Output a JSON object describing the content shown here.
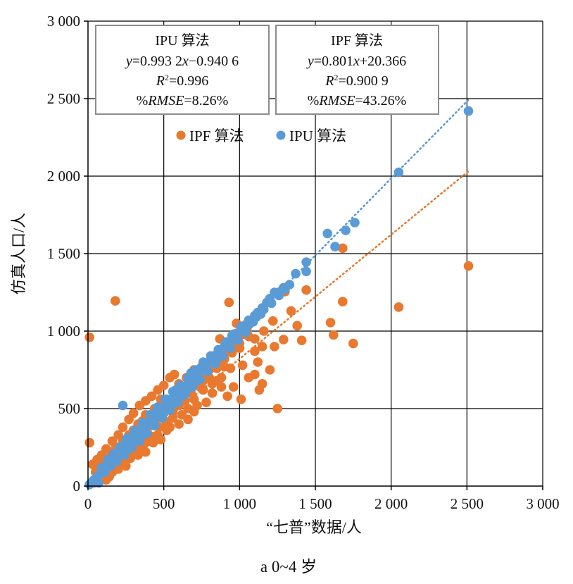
{
  "chart_data": {
    "type": "scatter",
    "title": "",
    "caption": "a 0~4 岁",
    "xlabel": "“七普”数据/人",
    "ylabel": "仿真人口/人",
    "xlim": [
      0,
      3000
    ],
    "ylim": [
      0,
      3000
    ],
    "x_ticks": [
      0,
      500,
      1000,
      1500,
      2000,
      2500,
      3000
    ],
    "y_ticks": [
      0,
      500,
      1000,
      1500,
      2000,
      2500,
      3000
    ],
    "x_tick_labels": [
      "0",
      "500",
      "1 000",
      "1 500",
      "2 000",
      "2 500",
      "3 000"
    ],
    "y_tick_labels": [
      "0",
      "500",
      "1 000",
      "1 500",
      "2 000",
      "2 500",
      "3 000"
    ],
    "grid": true,
    "legend_position": "top-center",
    "legend": [
      {
        "series": "IPF",
        "label": "IPF 算法"
      },
      {
        "series": "IPU",
        "label": "IPU 算法"
      }
    ],
    "series": [
      {
        "name": "IPF",
        "label": "IPF 算法",
        "color": "#e8792f",
        "points": [
          [
            10,
            960
          ],
          [
            10,
            280
          ],
          [
            180,
            1195
          ],
          [
            1300,
            1255
          ],
          [
            1680,
            1535
          ],
          [
            1440,
            1265
          ],
          [
            930,
            1185
          ],
          [
            1680,
            1190
          ],
          [
            2050,
            1155
          ],
          [
            2510,
            1420
          ],
          [
            1600,
            1055
          ],
          [
            1620,
            975
          ],
          [
            1750,
            920
          ],
          [
            1410,
            940
          ],
          [
            1290,
            945
          ],
          [
            1220,
            1065
          ],
          [
            1250,
            500
          ],
          [
            1340,
            1130
          ],
          [
            1380,
            1035
          ],
          [
            1060,
            965
          ],
          [
            1000,
            890
          ],
          [
            1120,
            800
          ],
          [
            1200,
            750
          ],
          [
            1060,
            700
          ],
          [
            1130,
            620
          ],
          [
            920,
            580
          ],
          [
            1010,
            560
          ],
          [
            1150,
            660
          ],
          [
            1100,
            720
          ],
          [
            960,
            640
          ],
          [
            1100,
            870
          ],
          [
            980,
            1050
          ],
          [
            870,
            950
          ],
          [
            880,
            700
          ],
          [
            820,
            600
          ],
          [
            740,
            640
          ],
          [
            680,
            600
          ],
          [
            600,
            520
          ],
          [
            560,
            480
          ],
          [
            520,
            410
          ],
          [
            470,
            380
          ],
          [
            420,
            320
          ],
          [
            380,
            280
          ],
          [
            340,
            240
          ],
          [
            300,
            220
          ],
          [
            260,
            190
          ],
          [
            220,
            150
          ],
          [
            180,
            130
          ],
          [
            160,
            90
          ],
          [
            140,
            60
          ],
          [
            120,
            40
          ],
          [
            100,
            80
          ],
          [
            80,
            60
          ],
          [
            60,
            40
          ],
          [
            40,
            20
          ],
          [
            30,
            140
          ],
          [
            60,
            170
          ],
          [
            90,
            200
          ],
          [
            120,
            240
          ],
          [
            160,
            290
          ],
          [
            200,
            330
          ],
          [
            230,
            380
          ],
          [
            270,
            430
          ],
          [
            300,
            470
          ],
          [
            340,
            520
          ],
          [
            380,
            550
          ],
          [
            420,
            580
          ],
          [
            460,
            620
          ],
          [
            500,
            650
          ],
          [
            540,
            700
          ],
          [
            570,
            720
          ],
          [
            480,
            560
          ],
          [
            420,
            460
          ],
          [
            360,
            420
          ],
          [
            300,
            360
          ],
          [
            250,
            300
          ],
          [
            200,
            250
          ],
          [
            150,
            190
          ],
          [
            100,
            140
          ],
          [
            50,
            90
          ],
          [
            600,
            660
          ],
          [
            650,
            700
          ],
          [
            700,
            750
          ],
          [
            640,
            550
          ],
          [
            700,
            560
          ],
          [
            760,
            620
          ],
          [
            800,
            700
          ],
          [
            850,
            760
          ],
          [
            900,
            820
          ],
          [
            950,
            860
          ],
          [
            1000,
            920
          ],
          [
            620,
            460
          ],
          [
            660,
            500
          ],
          [
            700,
            480
          ],
          [
            560,
            440
          ],
          [
            520,
            360
          ],
          [
            460,
            330
          ],
          [
            400,
            300
          ],
          [
            350,
            260
          ],
          [
            290,
            260
          ],
          [
            240,
            210
          ],
          [
            200,
            180
          ],
          [
            700,
            650
          ],
          [
            750,
            700
          ],
          [
            800,
            750
          ],
          [
            850,
            800
          ],
          [
            900,
            850
          ],
          [
            950,
            900
          ],
          [
            880,
            640
          ],
          [
            940,
            760
          ],
          [
            1020,
            780
          ],
          [
            780,
            540
          ],
          [
            720,
            520
          ],
          [
            660,
            430
          ],
          [
            600,
            400
          ],
          [
            540,
            380
          ],
          [
            480,
            300
          ],
          [
            430,
            280
          ],
          [
            380,
            220
          ],
          [
            330,
            200
          ],
          [
            280,
            180
          ],
          [
            250,
            130
          ],
          [
            200,
            110
          ],
          [
            620,
            590
          ],
          [
            580,
            610
          ],
          [
            500,
            540
          ],
          [
            440,
            500
          ],
          [
            380,
            460
          ],
          [
            330,
            400
          ],
          [
            270,
            330
          ],
          [
            230,
            290
          ],
          [
            180,
            240
          ],
          [
            140,
            180
          ],
          [
            110,
            150
          ],
          [
            80,
            120
          ],
          [
            900,
            770
          ],
          [
            850,
            680
          ],
          [
            820,
            660
          ],
          [
            760,
            680
          ],
          [
            680,
            640
          ],
          [
            640,
            620
          ],
          [
            560,
            500
          ],
          [
            520,
            520
          ],
          [
            460,
            440
          ],
          [
            410,
            390
          ],
          [
            360,
            350
          ],
          [
            310,
            310
          ],
          [
            1050,
            1000
          ],
          [
            1100,
            950
          ],
          [
            1160,
            1000
          ],
          [
            1230,
            900
          ],
          [
            1150,
            900
          ],
          [
            1080,
            1060
          ],
          [
            1030,
            980
          ]
        ]
      },
      {
        "name": "IPU",
        "label": "IPU 算法",
        "color": "#5b9bd5",
        "points": [
          [
            2510,
            2420
          ],
          [
            2050,
            2025
          ],
          [
            1760,
            1700
          ],
          [
            1700,
            1650
          ],
          [
            1630,
            1545
          ],
          [
            1580,
            1630
          ],
          [
            1440,
            1445
          ],
          [
            1440,
            1385
          ],
          [
            1370,
            1370
          ],
          [
            1300,
            1270
          ],
          [
            1270,
            1255
          ],
          [
            1230,
            1250
          ],
          [
            1200,
            1210
          ],
          [
            1180,
            1185
          ],
          [
            1150,
            1150
          ],
          [
            1120,
            1120
          ],
          [
            1100,
            1100
          ],
          [
            1060,
            1070
          ],
          [
            1040,
            1040
          ],
          [
            1010,
            1010
          ],
          [
            980,
            985
          ],
          [
            950,
            950
          ],
          [
            920,
            925
          ],
          [
            900,
            900
          ],
          [
            870,
            870
          ],
          [
            850,
            850
          ],
          [
            820,
            825
          ],
          [
            800,
            800
          ],
          [
            780,
            780
          ],
          [
            760,
            760
          ],
          [
            730,
            735
          ],
          [
            710,
            710
          ],
          [
            690,
            690
          ],
          [
            670,
            670
          ],
          [
            650,
            650
          ],
          [
            620,
            625
          ],
          [
            600,
            600
          ],
          [
            580,
            580
          ],
          [
            560,
            560
          ],
          [
            540,
            540
          ],
          [
            510,
            515
          ],
          [
            490,
            490
          ],
          [
            470,
            470
          ],
          [
            450,
            450
          ],
          [
            430,
            430
          ],
          [
            400,
            405
          ],
          [
            380,
            380
          ],
          [
            360,
            360
          ],
          [
            340,
            340
          ],
          [
            320,
            320
          ],
          [
            300,
            300
          ],
          [
            280,
            280
          ],
          [
            260,
            260
          ],
          [
            240,
            240
          ],
          [
            220,
            220
          ],
          [
            200,
            200
          ],
          [
            180,
            180
          ],
          [
            160,
            160
          ],
          [
            140,
            140
          ],
          [
            120,
            120
          ],
          [
            100,
            100
          ],
          [
            80,
            80
          ],
          [
            60,
            60
          ],
          [
            40,
            40
          ],
          [
            20,
            20
          ],
          [
            10,
            10
          ],
          [
            230,
            520
          ],
          [
            30,
            30
          ],
          [
            50,
            30
          ],
          [
            70,
            20
          ],
          [
            90,
            120
          ],
          [
            110,
            90
          ],
          [
            130,
            170
          ],
          [
            150,
            130
          ],
          [
            170,
            210
          ],
          [
            190,
            160
          ],
          [
            210,
            250
          ],
          [
            240,
            200
          ],
          [
            260,
            310
          ],
          [
            290,
            250
          ],
          [
            310,
            360
          ],
          [
            340,
            290
          ],
          [
            360,
            410
          ],
          [
            390,
            340
          ],
          [
            410,
            460
          ],
          [
            440,
            390
          ],
          [
            460,
            510
          ],
          [
            490,
            440
          ],
          [
            510,
            560
          ],
          [
            540,
            490
          ],
          [
            560,
            610
          ],
          [
            590,
            540
          ],
          [
            610,
            650
          ],
          [
            640,
            590
          ],
          [
            660,
            700
          ],
          [
            690,
            640
          ],
          [
            710,
            750
          ],
          [
            740,
            690
          ],
          [
            760,
            800
          ],
          [
            790,
            740
          ],
          [
            810,
            840
          ],
          [
            840,
            790
          ],
          [
            860,
            880
          ],
          [
            890,
            840
          ],
          [
            910,
            930
          ],
          [
            940,
            890
          ],
          [
            960,
            980
          ],
          [
            990,
            940
          ],
          [
            1010,
            1030
          ],
          [
            1040,
            990
          ],
          [
            1060,
            1040
          ],
          [
            1090,
            1060
          ],
          [
            1110,
            1090
          ],
          [
            1140,
            1110
          ],
          [
            1160,
            1140
          ],
          [
            1210,
            1180
          ],
          [
            1260,
            1230
          ],
          [
            1290,
            1280
          ],
          [
            1330,
            1300
          ],
          [
            520,
            560
          ],
          [
            600,
            560
          ],
          [
            680,
            730
          ],
          [
            720,
            680
          ],
          [
            580,
            620
          ],
          [
            500,
            470
          ],
          [
            420,
            460
          ],
          [
            380,
            340
          ],
          [
            320,
            360
          ],
          [
            270,
            240
          ],
          [
            250,
            290
          ],
          [
            300,
            330
          ],
          [
            350,
            320
          ],
          [
            450,
            480
          ],
          [
            550,
            520
          ],
          [
            650,
            620
          ],
          [
            750,
            770
          ],
          [
            850,
            820
          ],
          [
            950,
            970
          ],
          [
            1030,
            1020
          ]
        ]
      }
    ],
    "fits": [
      {
        "series": "IPU",
        "name": "IPU 算法",
        "slope": 0.9932,
        "intercept": -0.9406,
        "r2": 0.996,
        "rmse_pct": 8.26,
        "x_range": [
          0,
          2510
        ],
        "color": "#5b9bd5"
      },
      {
        "series": "IPF",
        "name": "IPF 算法",
        "slope": 0.801,
        "intercept": 20.366,
        "r2": 0.9009,
        "rmse_pct": 43.26,
        "x_range": [
          0,
          2510
        ],
        "color": "#e8792f"
      }
    ],
    "annotations": [
      {
        "name": "ipu-box",
        "title": "IPU 算法",
        "eq_y": "y",
        "eq_eq": "=",
        "eq_rhs": "0.993 2",
        "eq_x": "x",
        "eq_tail": "−0.940 6",
        "r2_label": "R",
        "r2_sup": "2",
        "r2_value": "=0.996",
        "rmse_prefix": "%",
        "rmse_label": "RMSE",
        "rmse_value": "=8.26%"
      },
      {
        "name": "ipf-box",
        "title": "IPF 算法",
        "eq_y": "y",
        "eq_eq": "=",
        "eq_rhs": "0.801",
        "eq_x": "x",
        "eq_tail": "+20.366",
        "r2_label": "R",
        "r2_sup": "2",
        "r2_value": "=0.900 9",
        "rmse_prefix": "%",
        "rmse_label": "RMSE",
        "rmse_value": "=43.26%"
      }
    ]
  }
}
